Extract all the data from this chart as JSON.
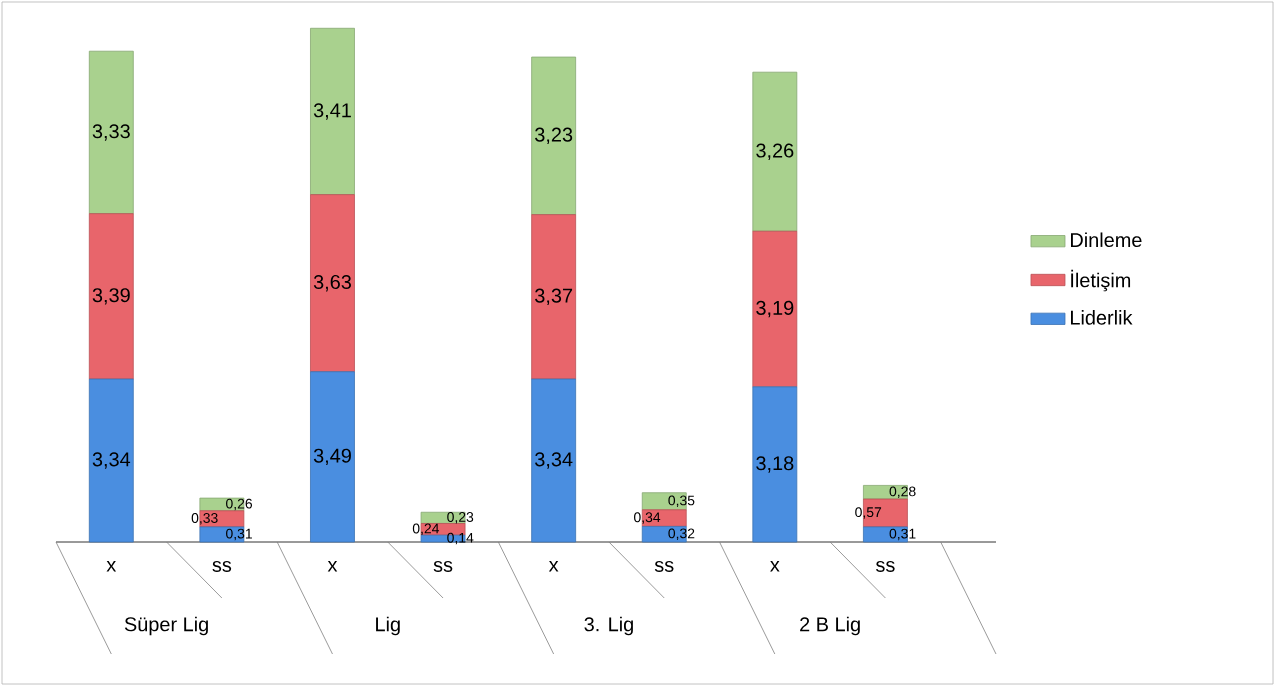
{
  "chart_data": {
    "type": "bar",
    "stacked": true,
    "legend": "right",
    "categories": [
      "x",
      "ss",
      "x",
      "ss",
      "x",
      "ss",
      "x",
      "ss"
    ],
    "series": [
      {
        "name": "Liderlik",
        "color": "#4a8ee0",
        "values": [
          3.34,
          0.31,
          3.49,
          0.14,
          3.34,
          0.32,
          3.18,
          0.31
        ],
        "value_labels": [
          "3,34",
          "0,31",
          "3,49",
          "0,14",
          "3,34",
          "0,32",
          "3,18",
          "0,31"
        ]
      },
      {
        "name": "İletişim",
        "color": "#e8656b",
        "values": [
          3.39,
          0.33,
          3.63,
          0.24,
          3.37,
          0.34,
          3.19,
          0.57
        ],
        "value_labels": [
          "3,39",
          "0,33",
          "3,63",
          "0,24",
          "3,37",
          "0,34",
          "3,19",
          "0,57"
        ]
      },
      {
        "name": "Dinleme",
        "color": "#a9d18e",
        "values": [
          3.33,
          0.26,
          3.41,
          0.23,
          3.23,
          0.35,
          3.26,
          0.28
        ],
        "value_labels": [
          "3,33",
          "0,26",
          "3,41",
          "0,23",
          "3,23",
          "0,35",
          "3,26",
          "0,28"
        ]
      }
    ],
    "annotations": [
      "Süper Lig",
      "Lig",
      "3. Lig",
      "2 B Lig"
    ]
  }
}
